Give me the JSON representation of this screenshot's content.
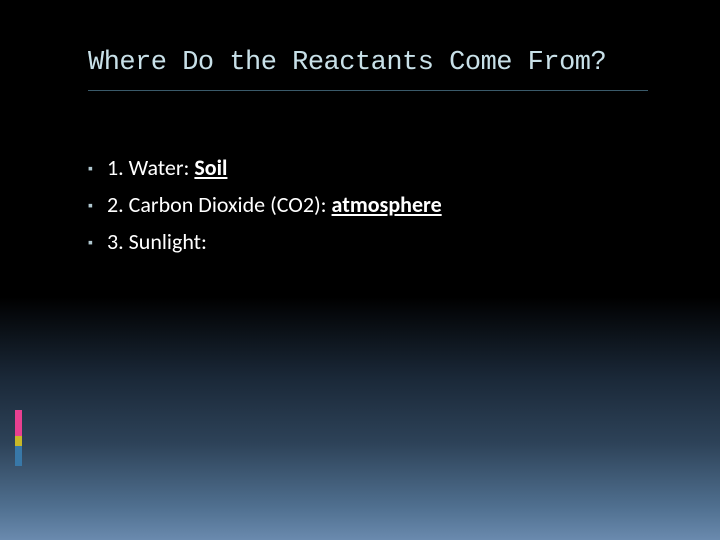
{
  "slide": {
    "title": "Where Do the Reactants Come From?",
    "title_color": "#c8e0e8",
    "title_fontsize": 27,
    "title_weight": "normal",
    "underline_color": "#3a5a6a",
    "text_color": "#ffffff",
    "body_fontsize": 22,
    "bullet_color": "#b0c8d0",
    "background_gradient_start": "#000000",
    "background_gradient_end": "#6a8aae",
    "items": [
      {
        "prefix": "1. Water: ",
        "emphasis": "Soil",
        "suffix": ""
      },
      {
        "prefix": "2. Carbon Dioxide (CO2): ",
        "emphasis": "atmosphere",
        "suffix": ""
      },
      {
        "prefix": "3. Sunlight:",
        "emphasis": "",
        "suffix": ""
      }
    ],
    "accents": [
      {
        "color": "#e84090",
        "height": 26
      },
      {
        "color": "#c8b828",
        "height": 10
      },
      {
        "color": "#3878a8",
        "height": 20
      }
    ]
  }
}
